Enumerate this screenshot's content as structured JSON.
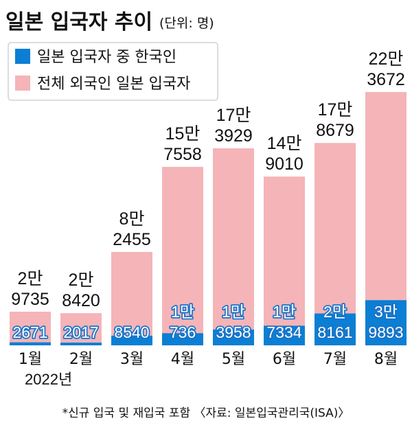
{
  "title": "일본 입국자 추이",
  "unit_note": "(단위: 명)",
  "footnote": "*신규 입국 및 재입국 포함 〈자료: 일본입국관리국(ISA)〉",
  "year_label": "2022년",
  "colors": {
    "korean": "#0b7fd3",
    "total": "#f5b4b8",
    "korean_label_outline": "#1a73c8"
  },
  "chart_data": {
    "type": "bar",
    "stacked": "overlay",
    "title": "일본 입국자 추이",
    "unit": "(단위: 명)",
    "categories": [
      "1월",
      "2월",
      "3월",
      "4월",
      "5월",
      "6월",
      "7월",
      "8월"
    ],
    "series": [
      {
        "name": "일본 입국자 중 한국인",
        "color": "#0b7fd3",
        "values": [
          2671,
          2017,
          8540,
          10736,
          13958,
          17334,
          28161,
          39893
        ],
        "labels": [
          [
            "2671"
          ],
          [
            "2017"
          ],
          [
            "8540"
          ],
          [
            "1만",
            "736"
          ],
          [
            "1만",
            "3958"
          ],
          [
            "1만",
            "7334"
          ],
          [
            "2만",
            "8161"
          ],
          [
            "3만",
            "9893"
          ]
        ]
      },
      {
        "name": "전체 외국인 일본 입국자",
        "color": "#f5b4b8",
        "values": [
          29735,
          28420,
          82455,
          157558,
          173929,
          149010,
          178679,
          223672
        ],
        "labels": [
          [
            "2만",
            "9735"
          ],
          [
            "2만",
            "8420"
          ],
          [
            "8만",
            "2455"
          ],
          [
            "15만",
            "7558"
          ],
          [
            "17만",
            "3929"
          ],
          [
            "14만",
            "9010"
          ],
          [
            "17만",
            "8679"
          ],
          [
            "22만",
            "3672"
          ]
        ]
      }
    ],
    "ylim": [
      0,
      223672
    ],
    "grid": false,
    "legend": "top-left"
  }
}
